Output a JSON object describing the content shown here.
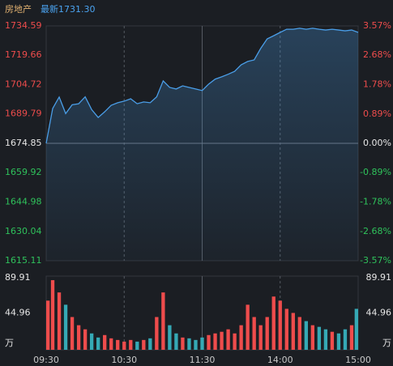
{
  "chart_data": [
    {
      "type": "line",
      "title": "房地产",
      "subtitle": "最新1731.30",
      "line_color": "#4a9ee8",
      "up_color": "#ee4c4c",
      "down_color": "#2fc25b",
      "flat_color": "#e6e6e6",
      "x": [
        0,
        5,
        10,
        15,
        20,
        25,
        30,
        35,
        40,
        45,
        50,
        55,
        60,
        65,
        70,
        75,
        80,
        85,
        90,
        95,
        100,
        105,
        110,
        115,
        120,
        125,
        130,
        135,
        140,
        145,
        150,
        155,
        160,
        165,
        170,
        175,
        180,
        185,
        190,
        195,
        200,
        205,
        210,
        215,
        220,
        225,
        230,
        235,
        240
      ],
      "values": [
        1674.85,
        1692.6,
        1698.4,
        1690,
        1694.5,
        1695,
        1698.5,
        1692,
        1688,
        1690.9,
        1694.2,
        1695.5,
        1696.3,
        1697.5,
        1695,
        1695.9,
        1695.5,
        1698.5,
        1706.6,
        1703.3,
        1702.5,
        1704.1,
        1703.3,
        1702.5,
        1701.7,
        1705,
        1707.5,
        1708.7,
        1710,
        1711.5,
        1714.8,
        1716.5,
        1717.3,
        1723.1,
        1728,
        1729.6,
        1731.3,
        1732.9,
        1732.9,
        1733.4,
        1732.9,
        1733.4,
        1732.9,
        1732.5,
        1732.9,
        1732.5,
        1732.1,
        1732.5,
        1731.3
      ],
      "xlim": [
        0,
        240
      ],
      "xticks": [
        {
          "value": 0,
          "label": "09:30"
        },
        {
          "value": 60,
          "label": "10:30"
        },
        {
          "value": 120,
          "label": "11:30"
        },
        {
          "value": 180,
          "label": "14:00"
        },
        {
          "value": 240,
          "label": "15:00"
        }
      ],
      "ylim": [
        1615.11,
        1734.59
      ],
      "yticks": [
        1734.59,
        1719.66,
        1704.72,
        1689.79,
        1674.85,
        1659.92,
        1644.98,
        1630.04,
        1615.11
      ],
      "y2lim": [
        -3.57,
        3.57
      ],
      "y2ticks": [
        {
          "value": 3.57,
          "label": "3.57%"
        },
        {
          "value": 2.68,
          "label": "2.68%"
        },
        {
          "value": 1.78,
          "label": "1.78%"
        },
        {
          "value": 0.89,
          "label": "0.89%"
        },
        {
          "value": 0,
          "label": "0.00%"
        },
        {
          "value": -0.89,
          "label": "-0.89%"
        },
        {
          "value": -1.78,
          "label": "-1.78%"
        },
        {
          "value": -2.68,
          "label": "-2.68%"
        },
        {
          "value": -3.57,
          "label": "-3.57%"
        }
      ]
    },
    {
      "type": "bar",
      "up_color": "#ee4c4c",
      "down_color": "#35a9b5",
      "values": [
        60,
        85,
        70,
        55,
        40,
        30,
        25,
        20,
        15,
        18,
        14,
        12,
        10,
        12,
        10,
        12,
        14,
        40,
        70,
        30,
        20,
        15,
        14,
        12,
        15,
        18,
        20,
        22,
        25,
        20,
        30,
        55,
        40,
        30,
        40,
        65,
        60,
        50,
        45,
        40,
        35,
        30,
        28,
        25,
        22,
        20,
        25,
        30,
        50
      ],
      "ylim": [
        0,
        89.91
      ],
      "yticks": [
        {
          "value": 89.91,
          "label": "89.91"
        },
        {
          "value": 44.96,
          "label": "44.96"
        },
        {
          "value": 0,
          "label": "万"
        }
      ]
    }
  ]
}
